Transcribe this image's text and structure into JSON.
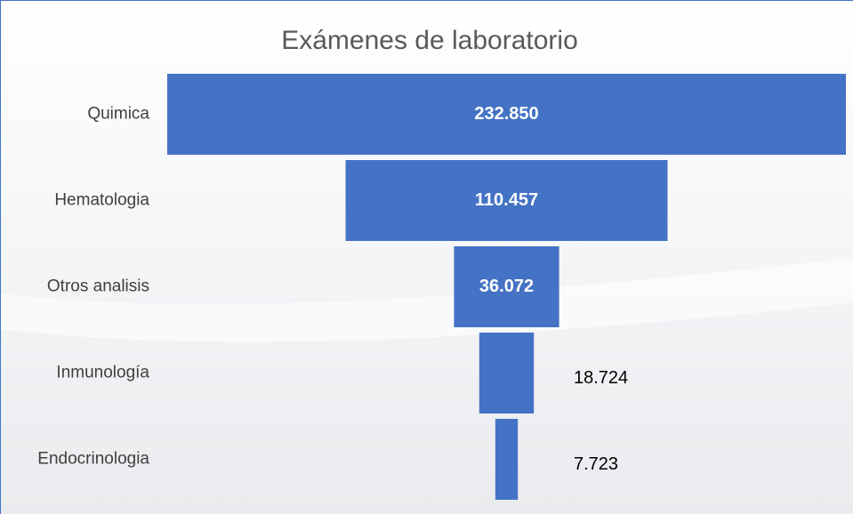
{
  "chart_data": {
    "type": "funnel",
    "title": "Exámenes de laboratorio",
    "categories": [
      "Quimica",
      "Hematologia",
      "Otros analisis",
      "Inmunología",
      "Endocrinologia"
    ],
    "values": [
      232850,
      110457,
      36072,
      18724,
      7723
    ],
    "value_labels": [
      "232.850",
      "110.457",
      "36.072",
      "18.724",
      "7.723"
    ],
    "color": "#4472c4"
  }
}
